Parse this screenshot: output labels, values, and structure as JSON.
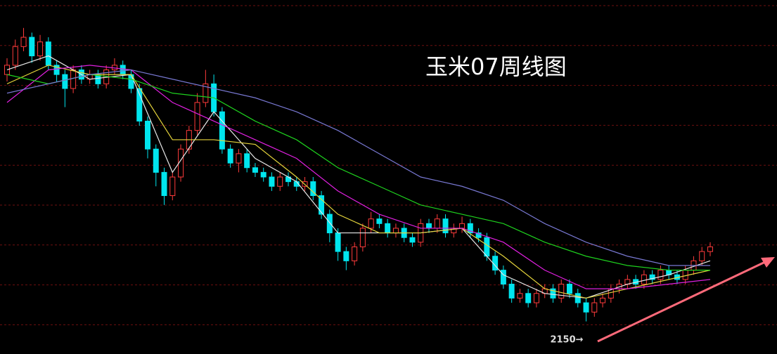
{
  "chart_data": {
    "type": "candlestick",
    "title": "玉米07周线图",
    "annotation": "2150→",
    "ylim": [
      2080,
      2840
    ],
    "up_color": "#ff3b3b",
    "down_color": "#00e5ee",
    "candles": [
      [
        2680,
        2715,
        2665,
        2700
      ],
      [
        2700,
        2755,
        2690,
        2740
      ],
      [
        2740,
        2780,
        2730,
        2760
      ],
      [
        2760,
        2770,
        2705,
        2720
      ],
      [
        2720,
        2765,
        2710,
        2750
      ],
      [
        2750,
        2760,
        2690,
        2700
      ],
      [
        2700,
        2710,
        2665,
        2680
      ],
      [
        2680,
        2690,
        2610,
        2650
      ],
      [
        2650,
        2700,
        2640,
        2690
      ],
      [
        2690,
        2700,
        2660,
        2670
      ],
      [
        2670,
        2690,
        2660,
        2680
      ],
      [
        2680,
        2690,
        2650,
        2660
      ],
      [
        2660,
        2700,
        2650,
        2690
      ],
      [
        2690,
        2715,
        2680,
        2700
      ],
      [
        2700,
        2710,
        2670,
        2680
      ],
      [
        2680,
        2690,
        2640,
        2650
      ],
      [
        2650,
        2660,
        2570,
        2580
      ],
      [
        2580,
        2590,
        2500,
        2520
      ],
      [
        2520,
        2530,
        2440,
        2470
      ],
      [
        2470,
        2480,
        2400,
        2420
      ],
      [
        2420,
        2470,
        2410,
        2460
      ],
      [
        2460,
        2530,
        2450,
        2520
      ],
      [
        2520,
        2570,
        2510,
        2560
      ],
      [
        2560,
        2640,
        2550,
        2620
      ],
      [
        2620,
        2690,
        2610,
        2660
      ],
      [
        2660,
        2680,
        2590,
        2600
      ],
      [
        2600,
        2610,
        2510,
        2520
      ],
      [
        2520,
        2530,
        2480,
        2490
      ],
      [
        2490,
        2520,
        2470,
        2510
      ],
      [
        2510,
        2520,
        2470,
        2480
      ],
      [
        2480,
        2490,
        2460,
        2470
      ],
      [
        2470,
        2480,
        2450,
        2460
      ],
      [
        2460,
        2470,
        2430,
        2440
      ],
      [
        2440,
        2470,
        2430,
        2460
      ],
      [
        2460,
        2470,
        2440,
        2450
      ],
      [
        2450,
        2460,
        2430,
        2440
      ],
      [
        2440,
        2460,
        2430,
        2450
      ],
      [
        2450,
        2460,
        2410,
        2420
      ],
      [
        2420,
        2430,
        2370,
        2380
      ],
      [
        2380,
        2390,
        2320,
        2340
      ],
      [
        2340,
        2350,
        2280,
        2300
      ],
      [
        2300,
        2310,
        2260,
        2280
      ],
      [
        2280,
        2320,
        2270,
        2310
      ],
      [
        2310,
        2360,
        2300,
        2350
      ],
      [
        2350,
        2385,
        2340,
        2370
      ],
      [
        2370,
        2380,
        2350,
        2360
      ],
      [
        2360,
        2370,
        2330,
        2340
      ],
      [
        2340,
        2360,
        2330,
        2350
      ],
      [
        2350,
        2360,
        2320,
        2330
      ],
      [
        2330,
        2340,
        2310,
        2320
      ],
      [
        2320,
        2370,
        2310,
        2360
      ],
      [
        2360,
        2370,
        2340,
        2350
      ],
      [
        2350,
        2380,
        2340,
        2370
      ],
      [
        2370,
        2380,
        2330,
        2340
      ],
      [
        2340,
        2360,
        2330,
        2350
      ],
      [
        2350,
        2375,
        2340,
        2360
      ],
      [
        2360,
        2370,
        2330,
        2340
      ],
      [
        2340,
        2350,
        2320,
        2330
      ],
      [
        2330,
        2340,
        2280,
        2290
      ],
      [
        2290,
        2300,
        2250,
        2260
      ],
      [
        2260,
        2270,
        2220,
        2230
      ],
      [
        2230,
        2240,
        2190,
        2200
      ],
      [
        2200,
        2220,
        2190,
        2210
      ],
      [
        2210,
        2220,
        2180,
        2190
      ],
      [
        2190,
        2220,
        2180,
        2210
      ],
      [
        2210,
        2230,
        2200,
        2220
      ],
      [
        2220,
        2230,
        2190,
        2200
      ],
      [
        2200,
        2240,
        2190,
        2230
      ],
      [
        2230,
        2240,
        2200,
        2210
      ],
      [
        2210,
        2220,
        2180,
        2190
      ],
      [
        2190,
        2200,
        2150,
        2170
      ],
      [
        2170,
        2200,
        2160,
        2190
      ],
      [
        2190,
        2210,
        2180,
        2200
      ],
      [
        2200,
        2230,
        2190,
        2220
      ],
      [
        2220,
        2240,
        2210,
        2230
      ],
      [
        2230,
        2250,
        2220,
        2240
      ],
      [
        2240,
        2250,
        2220,
        2230
      ],
      [
        2230,
        2260,
        2220,
        2250
      ],
      [
        2250,
        2260,
        2230,
        2240
      ],
      [
        2240,
        2270,
        2230,
        2260
      ],
      [
        2260,
        2270,
        2240,
        2250
      ],
      [
        2250,
        2260,
        2230,
        2240
      ],
      [
        2240,
        2270,
        2230,
        2260
      ],
      [
        2260,
        2290,
        2250,
        2280
      ],
      [
        2280,
        2310,
        2270,
        2300
      ],
      [
        2300,
        2320,
        2290,
        2310
      ]
    ],
    "lines": [
      {
        "color": "#e8e8e8",
        "x": [
          0,
          5,
          10,
          15,
          20,
          25,
          30,
          35,
          40,
          45,
          50,
          55,
          60,
          65,
          70,
          75,
          80,
          85
        ],
        "values": [
          2690,
          2720,
          2670,
          2680,
          2470,
          2600,
          2500,
          2450,
          2340,
          2340,
          2340,
          2350,
          2250,
          2210,
          2200,
          2230,
          2250,
          2280
        ]
      },
      {
        "color": "#e6d53c",
        "x": [
          0,
          5,
          10,
          15,
          20,
          25,
          30,
          35,
          40,
          45,
          50,
          55,
          60,
          65,
          70,
          75,
          80,
          85
        ],
        "values": [
          2660,
          2700,
          2680,
          2680,
          2540,
          2540,
          2530,
          2460,
          2380,
          2340,
          2340,
          2350,
          2290,
          2220,
          2200,
          2220,
          2240,
          2260
        ]
      },
      {
        "color": "#e020e0",
        "x": [
          0,
          5,
          10,
          15,
          20,
          25,
          30,
          35,
          40,
          45,
          50,
          55,
          60,
          65,
          70,
          75,
          80,
          85
        ],
        "values": [
          2620,
          2690,
          2700,
          2690,
          2620,
          2580,
          2540,
          2500,
          2430,
          2380,
          2350,
          2350,
          2320,
          2260,
          2220,
          2220,
          2230,
          2240
        ]
      },
      {
        "color": "#1ed21e",
        "x": [
          0,
          5,
          10,
          15,
          20,
          25,
          30,
          35,
          40,
          45,
          50,
          55,
          60,
          65,
          70,
          75,
          80,
          85
        ],
        "values": [
          2680,
          2660,
          2680,
          2670,
          2640,
          2630,
          2580,
          2540,
          2480,
          2440,
          2400,
          2380,
          2360,
          2320,
          2290,
          2270,
          2260,
          2260
        ]
      },
      {
        "color": "#7878d2",
        "x": [
          0,
          5,
          10,
          15,
          20,
          25,
          30,
          35,
          40,
          45,
          50,
          55,
          60,
          65,
          70,
          75,
          80,
          85
        ],
        "values": [
          2640,
          2660,
          2680,
          2690,
          2670,
          2650,
          2630,
          2600,
          2560,
          2510,
          2460,
          2440,
          2410,
          2360,
          2320,
          2290,
          2270,
          2270
        ]
      }
    ]
  }
}
